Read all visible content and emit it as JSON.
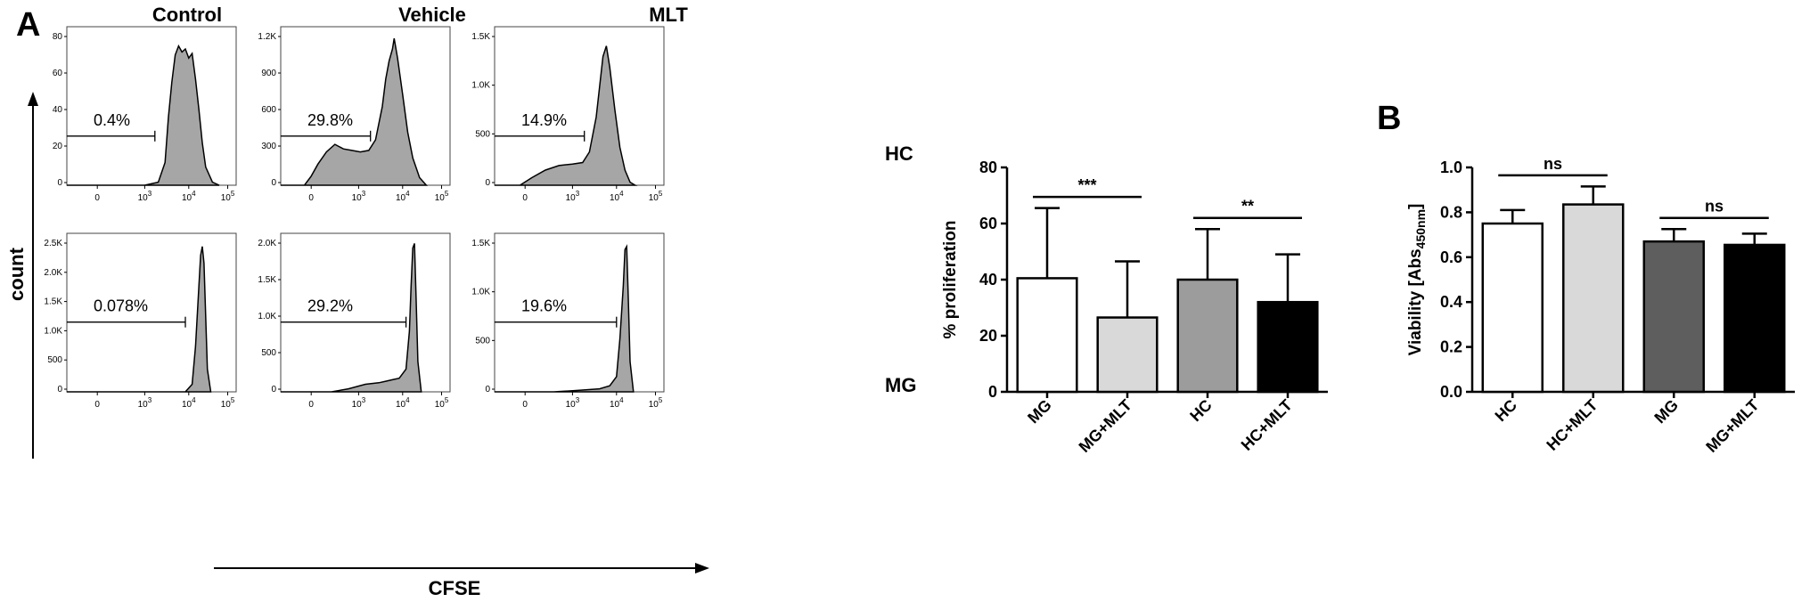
{
  "panels": {
    "a_letter": "A",
    "b_letter": "B"
  },
  "flow": {
    "columns": [
      "Control",
      "Vehicle",
      "MLT"
    ],
    "rows": [
      "HC",
      "MG"
    ],
    "y_axis_label": "count",
    "x_axis_label": "CFSE",
    "x_ticks": [
      {
        "base": "0",
        "exp": ""
      },
      {
        "base": "10",
        "exp": "3"
      },
      {
        "base": "10",
        "exp": "4"
      },
      {
        "base": "10",
        "exp": "5"
      }
    ],
    "histograms": [
      {
        "row": "HC",
        "column": "Control",
        "gate_percent": "0.4%",
        "y_ticks": [
          "0",
          "20",
          "40",
          "60",
          "80"
        ]
      },
      {
        "row": "HC",
        "column": "Vehicle",
        "gate_percent": "29.8%",
        "y_ticks": [
          "0",
          "300",
          "600",
          "900",
          "1.2K"
        ]
      },
      {
        "row": "HC",
        "column": "MLT",
        "gate_percent": "14.9%",
        "y_ticks": [
          "0",
          "500",
          "1.0K",
          "1.5K"
        ]
      },
      {
        "row": "MG",
        "column": "Control",
        "gate_percent": "0.078%",
        "y_ticks": [
          "0",
          "500",
          "1.0K",
          "1.5K",
          "2.0K",
          "2.5K"
        ]
      },
      {
        "row": "MG",
        "column": "Vehicle",
        "gate_percent": "29.2%",
        "y_ticks": [
          "0",
          "500",
          "1.0K",
          "1.5K",
          "2.0K"
        ]
      },
      {
        "row": "MG",
        "column": "MLT",
        "gate_percent": "19.6%",
        "y_ticks": [
          "0",
          "500",
          "1.0K",
          "1.5K"
        ]
      }
    ]
  },
  "chart_data": [
    {
      "type": "bar",
      "panel": "A",
      "title": "",
      "categories": [
        "MG",
        "MG+MLT",
        "HC",
        "HC+MLT"
      ],
      "values": [
        40.5,
        26.5,
        40,
        32
      ],
      "errors": [
        25,
        20,
        18,
        17
      ],
      "bar_colors": [
        "#ffffff",
        "#d9d9d9",
        "#9c9c9c",
        "#000000"
      ],
      "ylabel": "% proliferation",
      "xlabel": "",
      "ylim": [
        0,
        80
      ],
      "y_ticks": [
        "0",
        "20",
        "40",
        "60",
        "80"
      ],
      "significance": [
        {
          "from": "MG",
          "to": "MG+MLT",
          "label": "***"
        },
        {
          "from": "HC",
          "to": "HC+MLT",
          "label": "**"
        }
      ]
    },
    {
      "type": "bar",
      "panel": "B",
      "title": "",
      "categories": [
        "HC",
        "HC+MLT",
        "MG",
        "MG+MLT"
      ],
      "values": [
        0.75,
        0.835,
        0.67,
        0.655
      ],
      "errors": [
        0.06,
        0.08,
        0.055,
        0.05
      ],
      "bar_colors": [
        "#ffffff",
        "#d9d9d9",
        "#5e5e5e",
        "#000000"
      ],
      "ylabel_main": "Viability [Abs",
      "ylabel_sub": "450nm",
      "ylabel_close": "]",
      "xlabel": "",
      "ylim": [
        0,
        1.0
      ],
      "y_ticks": [
        "0.0",
        "0.2",
        "0.4",
        "0.6",
        "0.8",
        "1.0"
      ],
      "significance": [
        {
          "from": "HC",
          "to": "HC+MLT",
          "label": "ns"
        },
        {
          "from": "MG",
          "to": "MG+MLT",
          "label": "ns"
        }
      ]
    }
  ]
}
